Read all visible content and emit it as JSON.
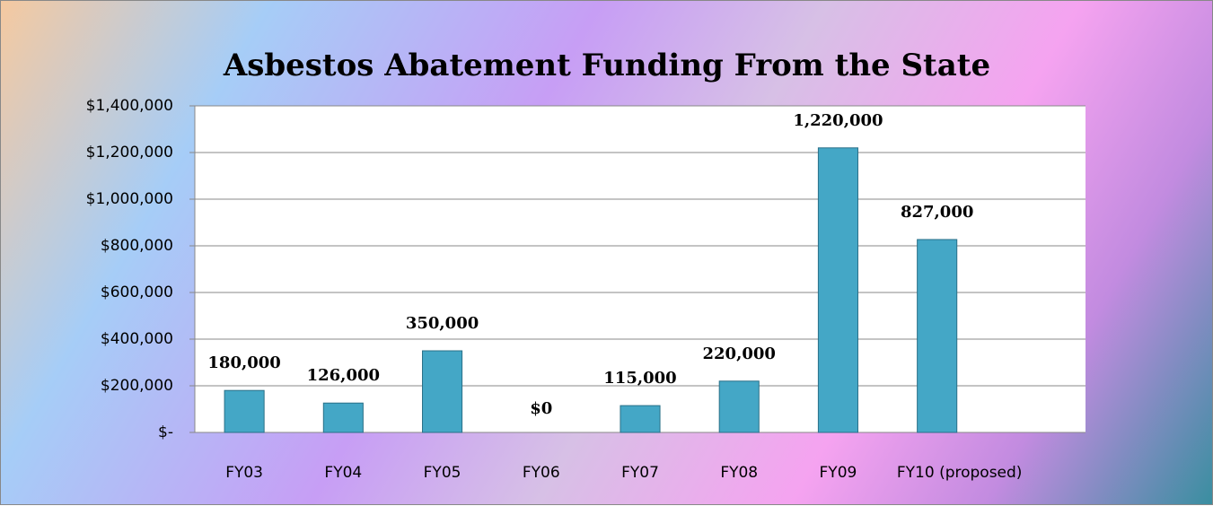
{
  "chart_data": {
    "type": "bar",
    "title": "Asbestos Abatement Funding From the State",
    "categories": [
      "FY03",
      "FY04",
      "FY05",
      "FY06",
      "FY07",
      "FY08",
      "FY09",
      "FY10 (proposed)",
      null
    ],
    "values": [
      180000,
      126000,
      350000,
      0,
      115000,
      220000,
      1220000,
      827000,
      null
    ],
    "value_labels": [
      "180,000",
      "126,000",
      "350,000",
      "$0",
      "115,000",
      "220,000",
      "1,220,000",
      "827,000",
      null
    ],
    "color": "#44a7c6",
    "ylim": [
      0,
      1400000
    ],
    "yticks": [
      {
        "value": 0,
        "label": "$-"
      },
      {
        "value": 200000,
        "label": "$200,000"
      },
      {
        "value": 400000,
        "label": "$400,000"
      },
      {
        "value": 600000,
        "label": "$600,000"
      },
      {
        "value": 800000,
        "label": "$800,000"
      },
      {
        "value": 1000000,
        "label": "$1,000,000"
      },
      {
        "value": 1200000,
        "label": "$1,200,000"
      },
      {
        "value": 1400000,
        "label": "$1,400,000"
      }
    ],
    "grid": true
  }
}
